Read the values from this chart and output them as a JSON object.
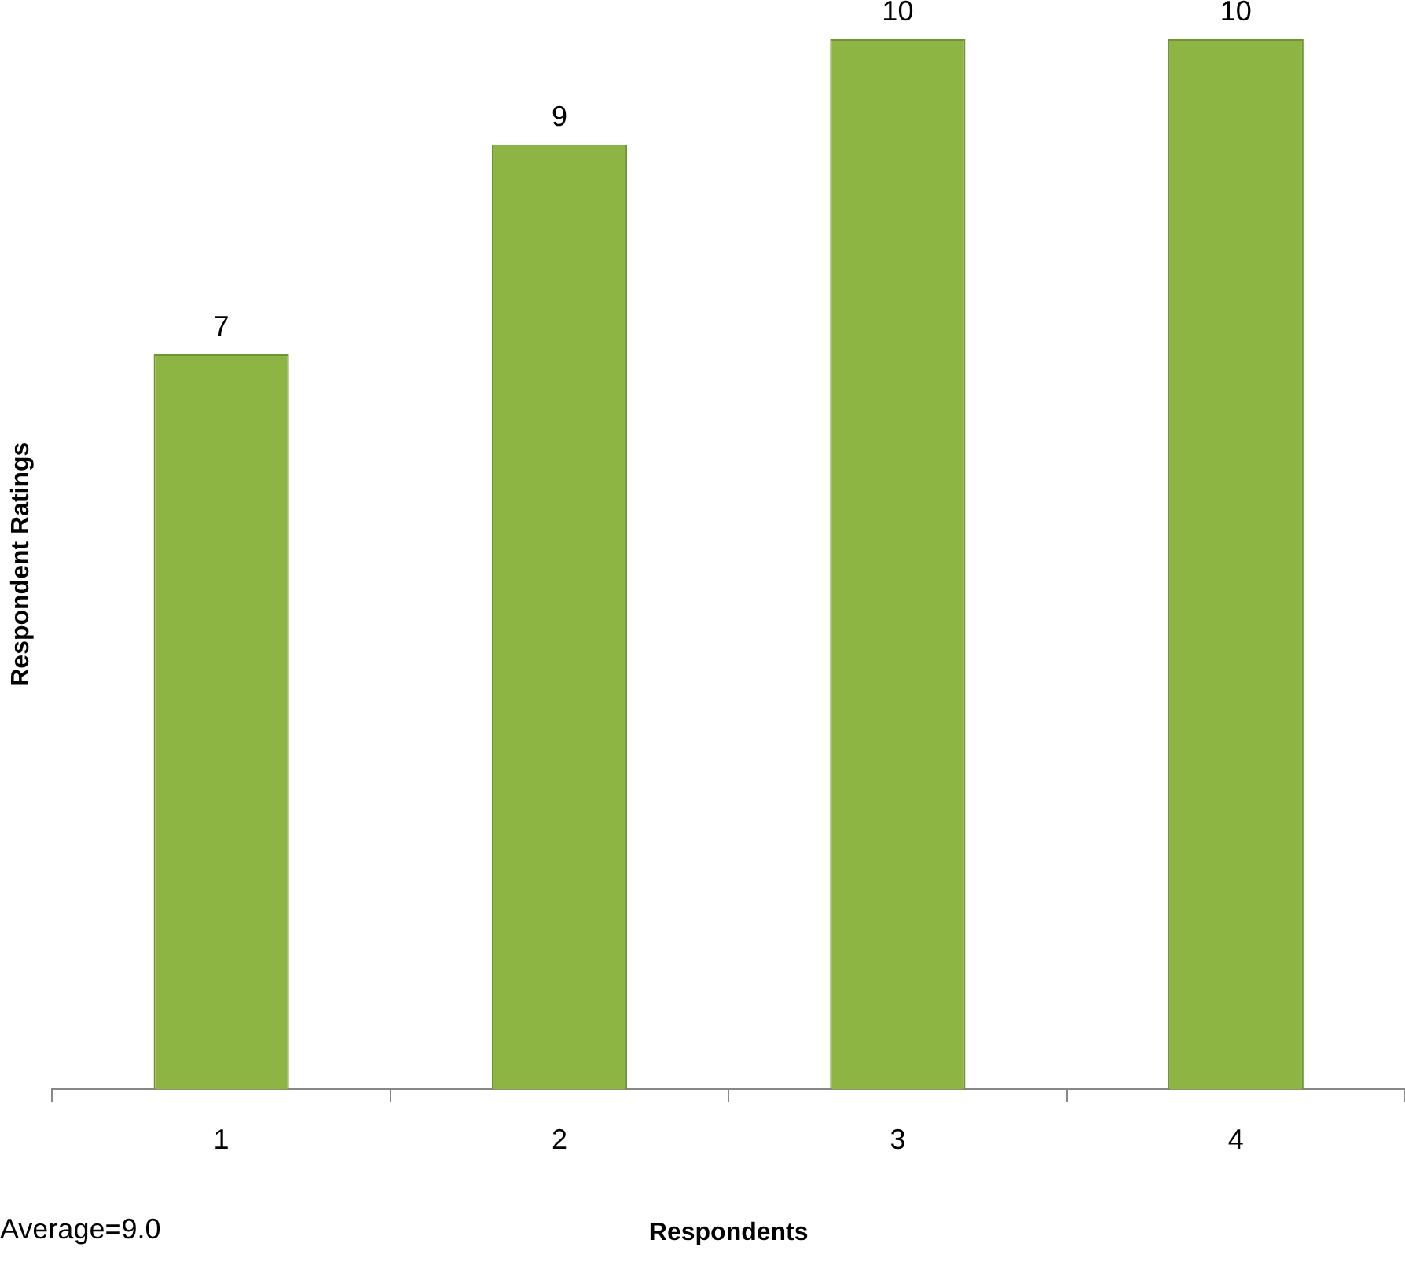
{
  "chart_data": {
    "type": "bar",
    "xlabel": "Respondents",
    "ylabel": "Respondent Ratings",
    "categories": [
      "1",
      "2",
      "3",
      "4"
    ],
    "values": [
      7,
      9,
      10,
      10
    ],
    "color": "#8db543",
    "ylim": [
      0,
      10
    ],
    "tick_labels": "x",
    "data_labels": true,
    "annotations": [
      "Average=9.0"
    ]
  }
}
